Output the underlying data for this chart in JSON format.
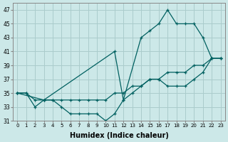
{
  "xlabel": "Humidex (Indice chaleur)",
  "bg_color": "#cce8e8",
  "grid_color": "#aacccc",
  "line_color": "#006060",
  "xlim": [
    -0.5,
    23.5
  ],
  "ylim": [
    31,
    48
  ],
  "yticks": [
    31,
    33,
    35,
    37,
    39,
    41,
    43,
    45,
    47
  ],
  "xticks": [
    0,
    1,
    2,
    3,
    4,
    5,
    6,
    7,
    8,
    9,
    10,
    11,
    12,
    13,
    14,
    15,
    16,
    17,
    18,
    19,
    20,
    21,
    22,
    23
  ],
  "line1_x": [
    0,
    1,
    2,
    3,
    4,
    5,
    6,
    7,
    8,
    9,
    10,
    11,
    12,
    13,
    14,
    15,
    16,
    17,
    18,
    19,
    20,
    21,
    22,
    23
  ],
  "line1_y": [
    35,
    35,
    34,
    34,
    34,
    34,
    34,
    34,
    34,
    34,
    34,
    35,
    35,
    36,
    36,
    37,
    37,
    38,
    38,
    38,
    39,
    39,
    40,
    40
  ],
  "line2_x": [
    0,
    1,
    2,
    3,
    4,
    5,
    6,
    7,
    8,
    9,
    10,
    11,
    12,
    13,
    14,
    15,
    16,
    17,
    18,
    19,
    20,
    21,
    22,
    23
  ],
  "line2_y": [
    35,
    35,
    33,
    34,
    34,
    33,
    32,
    32,
    32,
    32,
    31,
    32,
    34,
    35,
    36,
    37,
    37,
    36,
    36,
    36,
    37,
    38,
    40,
    40
  ],
  "line3_x": [
    0,
    3,
    11,
    12,
    14,
    15,
    16,
    17,
    18,
    19,
    20,
    21,
    22,
    23
  ],
  "line3_y": [
    35,
    34,
    41,
    34,
    43,
    44,
    45,
    47,
    45,
    45,
    45,
    43,
    40,
    40
  ]
}
